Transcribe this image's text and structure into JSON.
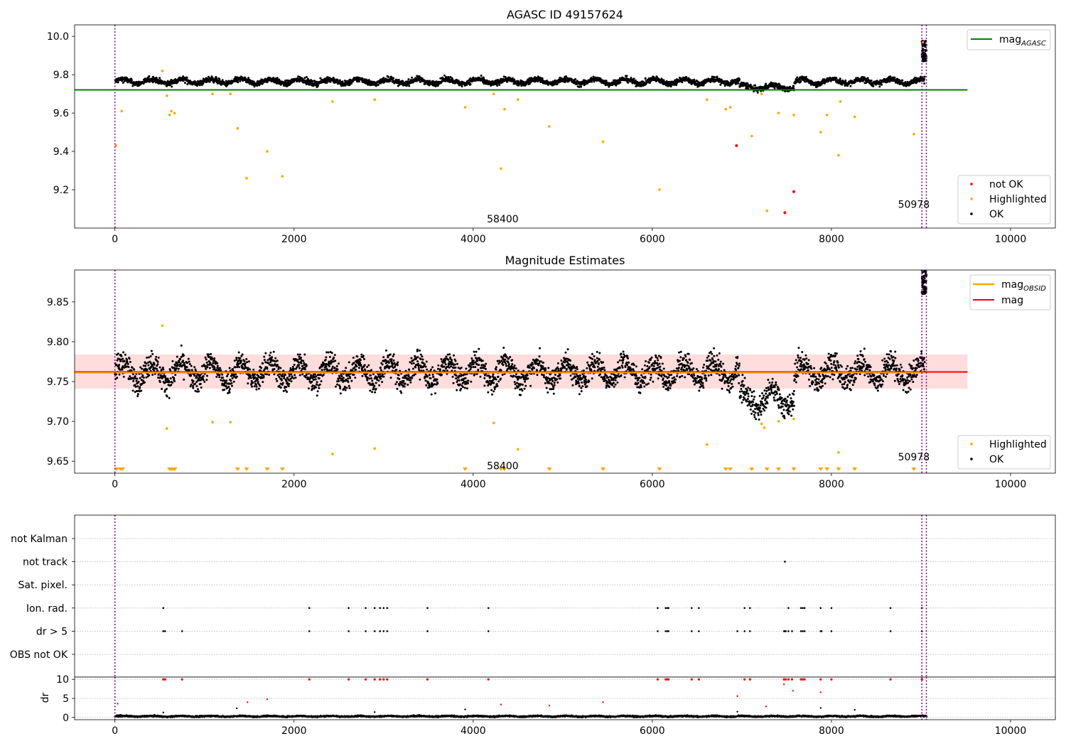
{
  "colors": {
    "ok": "#000000",
    "not_ok": "#ff0000",
    "highlighted": "#ffa500",
    "agasc_line": "#008000",
    "obsid_line": "#ffa500",
    "mag_line": "#ff0000",
    "band": "#ffb3b3",
    "vline": "#800080",
    "grid": "#b0b0b0"
  },
  "chart_data": [
    {
      "type": "scatter",
      "title": "AGASC ID 49157624",
      "xlim": [
        -450,
        10500
      ],
      "ylim": [
        9.0,
        10.06
      ],
      "x_ticks": [
        0,
        2000,
        4000,
        6000,
        8000,
        10000
      ],
      "x_tick_labels": [
        "0",
        "2000",
        "4000",
        "6000",
        "8000",
        "10000"
      ],
      "y_ticks": [
        9.2,
        9.4,
        9.6,
        9.8,
        10.0
      ],
      "y_tick_labels": [
        "9.2",
        "9.4",
        "9.6",
        "9.8",
        "10.0"
      ],
      "vlines": [
        0,
        9010,
        9060
      ],
      "annotations": [
        {
          "text": "58400",
          "x": 4330,
          "y": 9.03
        },
        {
          "text": "50978",
          "x": 8920,
          "y": 9.105
        }
      ],
      "hline": {
        "name": "mag",
        "subscript": "AGASC",
        "y": 9.721,
        "x_range": [
          -450,
          9520
        ]
      },
      "legend_upper": [
        {
          "label": "mag",
          "subscript": "AGASC",
          "kind": "line",
          "color": "#008000"
        }
      ],
      "legend_lower": [
        {
          "label": "not OK",
          "kind": "dot",
          "color": "#ff0000"
        },
        {
          "label": "Highlighted",
          "kind": "dot",
          "color": "#ffa500"
        },
        {
          "label": "OK",
          "kind": "dot",
          "color": "#000000"
        }
      ],
      "ok_baseline": {
        "x_range": [
          0,
          9040
        ],
        "center": 9.765,
        "amplitude": 0.012,
        "period": 330,
        "noise": 0.012,
        "dip": {
          "x_range": [
            6970,
            7580
          ],
          "center": 9.735
        }
      },
      "ok_tail": {
        "x_range": [
          9010,
          9060
        ],
        "y_range": [
          9.87,
          9.98
        ]
      },
      "highlighted": [
        [
          12,
          9.43
        ],
        [
          75,
          9.61
        ],
        [
          530,
          9.82
        ],
        [
          580,
          9.69
        ],
        [
          610,
          9.59
        ],
        [
          630,
          9.61
        ],
        [
          665,
          9.6
        ],
        [
          1090,
          9.7
        ],
        [
          1290,
          9.7
        ],
        [
          1370,
          9.52
        ],
        [
          1470,
          9.26
        ],
        [
          1700,
          9.4
        ],
        [
          1870,
          9.27
        ],
        [
          2430,
          9.66
        ],
        [
          2900,
          9.67
        ],
        [
          3910,
          9.63
        ],
        [
          4230,
          9.7
        ],
        [
          4310,
          9.31
        ],
        [
          4350,
          9.62
        ],
        [
          4500,
          9.67
        ],
        [
          4850,
          9.53
        ],
        [
          5450,
          9.45
        ],
        [
          6080,
          9.2
        ],
        [
          6610,
          9.67
        ],
        [
          6820,
          9.62
        ],
        [
          6870,
          9.63
        ],
        [
          7110,
          9.48
        ],
        [
          7220,
          9.7
        ],
        [
          7280,
          9.09
        ],
        [
          7410,
          9.6
        ],
        [
          7580,
          9.59
        ],
        [
          7880,
          9.5
        ],
        [
          7950,
          9.59
        ],
        [
          8080,
          9.38
        ],
        [
          8100,
          9.66
        ],
        [
          8260,
          9.58
        ],
        [
          8920,
          9.49
        ],
        [
          9020,
          9.97
        ]
      ],
      "not_ok": [
        [
          6940,
          9.43
        ],
        [
          7480,
          9.08
        ],
        [
          7580,
          9.19
        ]
      ]
    },
    {
      "type": "scatter",
      "title": "Magnitude Estimates",
      "xlim": [
        -450,
        10500
      ],
      "ylim": [
        9.635,
        9.89
      ],
      "x_ticks": [
        0,
        2000,
        4000,
        6000,
        8000,
        10000
      ],
      "x_tick_labels": [
        "0",
        "2000",
        "4000",
        "6000",
        "8000",
        "10000"
      ],
      "y_ticks": [
        9.65,
        9.7,
        9.75,
        9.8,
        9.85
      ],
      "y_tick_labels": [
        "9.65",
        "9.70",
        "9.75",
        "9.80",
        "9.85"
      ],
      "vlines": [
        0,
        9010,
        9060
      ],
      "annotations": [
        {
          "text": "58400",
          "x": 4330,
          "y": 9.64
        },
        {
          "text": "50978",
          "x": 8920,
          "y": 9.651
        }
      ],
      "mag_line": {
        "y": 9.762,
        "x_range": [
          -450,
          9520
        ]
      },
      "obsid_line": {
        "y": 9.761,
        "x_range": [
          -450,
          9040
        ]
      },
      "band": {
        "y_range": [
          9.741,
          9.784
        ],
        "x_range": [
          -450,
          9520
        ]
      },
      "legend_upper": [
        {
          "label": "mag",
          "subscript": "OBSID",
          "kind": "line",
          "color": "#ffa500"
        },
        {
          "label": "mag",
          "kind": "line",
          "color": "#ff0000"
        }
      ],
      "legend_lower": [
        {
          "label": "Highlighted",
          "kind": "dot",
          "color": "#ffa500"
        },
        {
          "label": "OK",
          "kind": "dot",
          "color": "#000000"
        }
      ],
      "ok_baseline": {
        "x_range": [
          0,
          9040
        ],
        "center": 9.762,
        "amplitude": 0.012,
        "period": 330,
        "noise": 0.013,
        "dip": {
          "x_range": [
            6970,
            7580
          ],
          "center": 9.728
        }
      },
      "ok_tail": {
        "x_range": [
          9010,
          9060
        ],
        "y_range": [
          9.86,
          9.89
        ]
      },
      "highlighted": [
        [
          530,
          9.82
        ],
        [
          580,
          9.691
        ],
        [
          1090,
          9.699
        ],
        [
          1290,
          9.699
        ],
        [
          2430,
          9.659
        ],
        [
          2900,
          9.666
        ],
        [
          4230,
          9.698
        ],
        [
          4500,
          9.665
        ],
        [
          6610,
          9.671
        ],
        [
          7220,
          9.697
        ],
        [
          7250,
          9.692
        ],
        [
          7410,
          9.7
        ],
        [
          7580,
          9.703
        ],
        [
          8080,
          9.661
        ]
      ],
      "offscale_markers": [
        20,
        60,
        85,
        610,
        630,
        650,
        670,
        1370,
        1470,
        1700,
        1870,
        3910,
        4310,
        4350,
        4850,
        5450,
        6080,
        6820,
        6870,
        7110,
        7280,
        7410,
        7580,
        7880,
        7950,
        8080,
        8260,
        8920
      ]
    },
    {
      "type": "scatter",
      "title": "",
      "xlim": [
        -450,
        10500
      ],
      "categories": [
        "not Kalman",
        "not track",
        "Sat. pixel.",
        "Ion. rad.",
        "dr > 5",
        "OBS not OK"
      ],
      "vlines": [
        0,
        9010,
        9060
      ],
      "flags": {
        "not track": [
          7480
        ],
        "Ion. rad.": [
          540,
          2170,
          2610,
          2800,
          2900,
          2960,
          3000,
          3040,
          3490,
          4170,
          6060,
          6150,
          6170,
          6180,
          6440,
          6520,
          7030,
          7090,
          7520,
          7660,
          7680,
          7700,
          7880,
          8000,
          8660,
          9010
        ],
        "dr > 5": [
          540,
          560,
          750,
          2170,
          2610,
          2800,
          2900,
          2960,
          3000,
          3040,
          3490,
          4170,
          6060,
          6150,
          6170,
          6180,
          6440,
          6520,
          6950,
          7030,
          7090,
          7470,
          7480,
          7490,
          7520,
          7560,
          7660,
          7680,
          7700,
          7880,
          7890,
          8000,
          8660,
          9010
        ]
      }
    },
    {
      "type": "scatter",
      "title": "",
      "ylabel": "dr",
      "xlim": [
        -450,
        10500
      ],
      "ylim": [
        -0.6,
        10.6
      ],
      "x_ticks": [
        0,
        2000,
        4000,
        6000,
        8000,
        10000
      ],
      "x_tick_labels": [
        "0",
        "2000",
        "4000",
        "6000",
        "8000",
        "10000"
      ],
      "y_ticks": [
        0,
        5,
        10
      ],
      "y_tick_labels": [
        "0",
        "5",
        "10"
      ],
      "vlines": [
        0,
        9010,
        9060
      ],
      "ok_baseline": {
        "x_range": [
          0,
          9060
        ],
        "center": 0.3,
        "amplitude": 0.1,
        "period": 330,
        "noise": 0.15
      },
      "red_clipped": [
        540,
        560,
        750,
        2170,
        2610,
        2800,
        2900,
        2960,
        3000,
        3040,
        3490,
        4170,
        6060,
        6150,
        6170,
        6180,
        6440,
        6520,
        7030,
        7090,
        7470,
        7490,
        7520,
        7560,
        7660,
        7680,
        7700,
        7880,
        8000,
        8660,
        9010
      ],
      "red_points": [
        [
          30,
          3.6
        ],
        [
          1480,
          4.0
        ],
        [
          1700,
          4.8
        ],
        [
          4310,
          3.4
        ],
        [
          4850,
          3.1
        ],
        [
          5450,
          4.0
        ],
        [
          6950,
          5.6
        ],
        [
          7270,
          2.9
        ],
        [
          7470,
          8.7
        ],
        [
          7570,
          7.0
        ],
        [
          7880,
          6.6
        ]
      ],
      "black_points": [
        [
          1360,
          2.4
        ],
        [
          3910,
          2.1
        ],
        [
          7880,
          2.5
        ],
        [
          8260,
          2.0
        ],
        [
          540,
          1.3
        ],
        [
          2900,
          1.4
        ],
        [
          6950,
          1.5
        ]
      ]
    }
  ]
}
